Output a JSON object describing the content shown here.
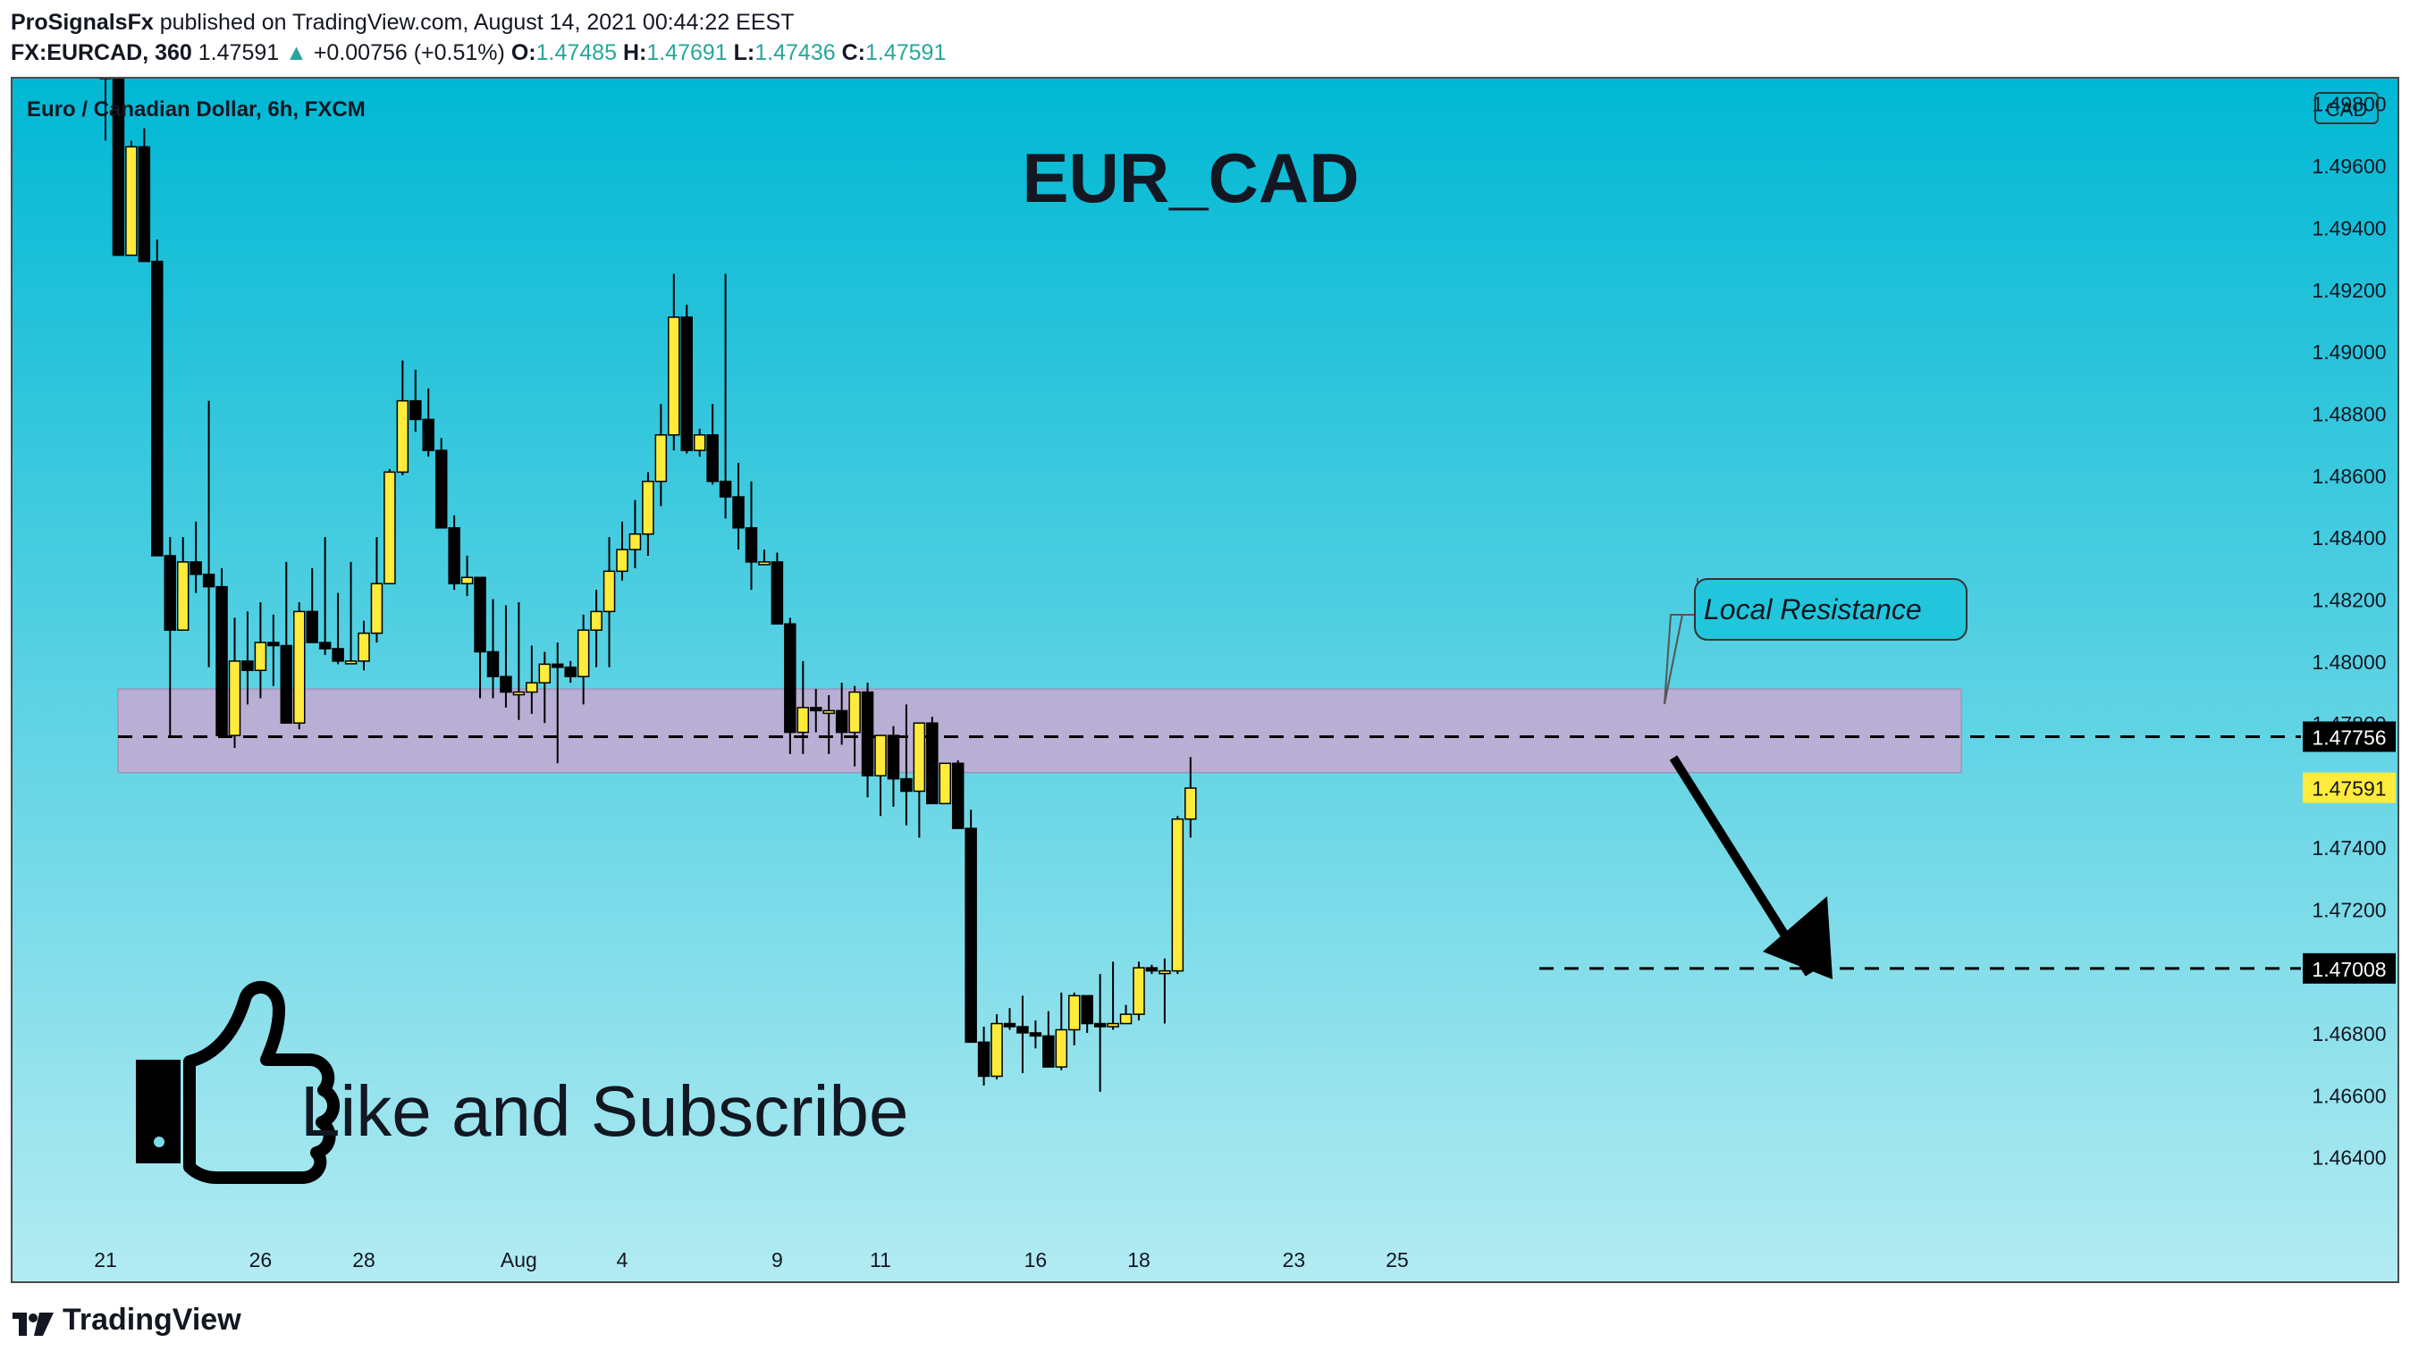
{
  "header": {
    "publisher": "ProSignalsFx",
    "published_text": "published on TradingView.com, August 14, 2021 00:44:22 EEST",
    "symbol": "FX:EURCAD, 360",
    "last": "1.47591",
    "change_arrow": "▲",
    "change": "+0.00756 (+0.51%)",
    "o_label": "O:",
    "o_value": "1.47485",
    "h_label": "H:",
    "h_value": "1.47691",
    "l_label": "L:",
    "l_value": "1.47436",
    "c_label": "C:",
    "c_value": "1.47591"
  },
  "footer": {
    "brand": "TradingView",
    "logo_icon": "tradingview-logo-icon"
  },
  "colors": {
    "bg_top": "#00b8d4",
    "bg_bottom": "#b3ebf2",
    "bull_body": "#ffeb3b",
    "bear_body": "#000000",
    "zone_fill": "#c9a8d1",
    "current_price_bg": "#ffeb3b",
    "level_label_bg": "#000000"
  },
  "chart_data": {
    "type": "candlestick",
    "instrument_label": "Euro / Canadian Dollar, 6h, FXCM",
    "title": "EUR_CAD",
    "currency_badge": "CAD",
    "ylim": [
      1.462,
      1.4988
    ],
    "y_ticks": [
      "1.49800",
      "1.49600",
      "1.49400",
      "1.49200",
      "1.49000",
      "1.48800",
      "1.48600",
      "1.48400",
      "1.48200",
      "1.48000",
      "1.47800",
      "1.47400",
      "1.47200",
      "1.46800",
      "1.46600",
      "1.46400"
    ],
    "x_ticks": [
      {
        "label": "21",
        "i": 0
      },
      {
        "label": "26",
        "i": 12
      },
      {
        "label": "28",
        "i": 20
      },
      {
        "label": "Aug",
        "i": 32
      },
      {
        "label": "4",
        "i": 40
      },
      {
        "label": "9",
        "i": 52
      },
      {
        "label": "11",
        "i": 60
      },
      {
        "label": "16",
        "i": 72
      },
      {
        "label": "18",
        "i": 80
      },
      {
        "label": "23",
        "i": 92
      },
      {
        "label": "25",
        "i": 100
      }
    ],
    "candles": [
      [
        1.499,
        1.4993,
        1.4968,
        1.4988
      ],
      [
        1.4988,
        1.499,
        1.4931,
        1.4931
      ],
      [
        1.4931,
        1.4968,
        1.4931,
        1.4966
      ],
      [
        1.4966,
        1.4972,
        1.4929,
        1.4929
      ],
      [
        1.4929,
        1.4936,
        1.4834,
        1.4834
      ],
      [
        1.4834,
        1.484,
        1.4776,
        1.481
      ],
      [
        1.481,
        1.484,
        1.481,
        1.4832
      ],
      [
        1.4832,
        1.4845,
        1.4822,
        1.4828
      ],
      [
        1.4828,
        1.4884,
        1.4798,
        1.4824
      ],
      [
        1.4824,
        1.483,
        1.4776,
        1.4776
      ],
      [
        1.4776,
        1.4814,
        1.4772,
        1.48
      ],
      [
        1.48,
        1.4816,
        1.4786,
        1.4797
      ],
      [
        1.4797,
        1.4819,
        1.4788,
        1.4806
      ],
      [
        1.4806,
        1.4815,
        1.4792,
        1.4805
      ],
      [
        1.4805,
        1.4832,
        1.478,
        1.478
      ],
      [
        1.478,
        1.4819,
        1.4778,
        1.4816
      ],
      [
        1.4816,
        1.483,
        1.4806,
        1.4806
      ],
      [
        1.4806,
        1.484,
        1.4802,
        1.4804
      ],
      [
        1.4804,
        1.4822,
        1.4799,
        1.48
      ],
      [
        1.48,
        1.4832,
        1.4799,
        1.48
      ],
      [
        1.48,
        1.4813,
        1.4797,
        1.4809
      ],
      [
        1.4809,
        1.484,
        1.4806,
        1.4825
      ],
      [
        1.4825,
        1.4862,
        1.4825,
        1.4861
      ],
      [
        1.4861,
        1.4897,
        1.486,
        1.4884
      ],
      [
        1.4884,
        1.4894,
        1.4874,
        1.4878
      ],
      [
        1.4878,
        1.4888,
        1.4866,
        1.4868
      ],
      [
        1.4868,
        1.4872,
        1.4843,
        1.4843
      ],
      [
        1.4843,
        1.4847,
        1.4823,
        1.4825
      ],
      [
        1.4825,
        1.4834,
        1.4821,
        1.4827
      ],
      [
        1.4827,
        1.4825,
        1.4788,
        1.4803
      ],
      [
        1.4803,
        1.482,
        1.4788,
        1.4795
      ],
      [
        1.4795,
        1.4818,
        1.4785,
        1.479
      ],
      [
        1.479,
        1.4819,
        1.4781,
        1.479
      ],
      [
        1.479,
        1.4805,
        1.4783,
        1.4793
      ],
      [
        1.4793,
        1.4803,
        1.478,
        1.4799
      ],
      [
        1.4799,
        1.4806,
        1.4767,
        1.4798
      ],
      [
        1.4798,
        1.48,
        1.4793,
        1.4795
      ],
      [
        1.4795,
        1.4815,
        1.4786,
        1.481
      ],
      [
        1.481,
        1.4823,
        1.4798,
        1.4816
      ],
      [
        1.4816,
        1.484,
        1.4798,
        1.4829
      ],
      [
        1.4829,
        1.4845,
        1.4826,
        1.4836
      ],
      [
        1.4836,
        1.4852,
        1.483,
        1.4841
      ],
      [
        1.4841,
        1.4861,
        1.4834,
        1.4858
      ],
      [
        1.4858,
        1.4883,
        1.485,
        1.4873
      ],
      [
        1.4873,
        1.4925,
        1.4868,
        1.4911
      ],
      [
        1.4911,
        1.4915,
        1.4867,
        1.4868
      ],
      [
        1.4868,
        1.4875,
        1.4866,
        1.4873
      ],
      [
        1.4873,
        1.4883,
        1.4857,
        1.4858
      ],
      [
        1.4858,
        1.4925,
        1.4846,
        1.4853
      ],
      [
        1.4853,
        1.4864,
        1.4836,
        1.4843
      ],
      [
        1.4843,
        1.4858,
        1.4823,
        1.4832
      ],
      [
        1.4832,
        1.4836,
        1.4831,
        1.4832
      ],
      [
        1.4832,
        1.4835,
        1.4812,
        1.4812
      ],
      [
        1.4812,
        1.4814,
        1.477,
        1.4777
      ],
      [
        1.4777,
        1.48,
        1.477,
        1.4785
      ],
      [
        1.4785,
        1.4791,
        1.4777,
        1.4784
      ],
      [
        1.4784,
        1.4789,
        1.477,
        1.4784
      ],
      [
        1.4784,
        1.4793,
        1.4773,
        1.4777
      ],
      [
        1.4777,
        1.4792,
        1.4766,
        1.479
      ],
      [
        1.479,
        1.4793,
        1.4756,
        1.4763
      ],
      [
        1.4763,
        1.4775,
        1.475,
        1.4776
      ],
      [
        1.4776,
        1.4779,
        1.4753,
        1.4762
      ],
      [
        1.4762,
        1.4786,
        1.4747,
        1.4758
      ],
      [
        1.4758,
        1.4778,
        1.4743,
        1.478
      ],
      [
        1.478,
        1.4782,
        1.4754,
        1.4754
      ],
      [
        1.4754,
        1.4764,
        1.4755,
        1.4767
      ],
      [
        1.4767,
        1.4768,
        1.4746,
        1.4746
      ],
      [
        1.4746,
        1.4752,
        1.468,
        1.4677
      ],
      [
        1.4677,
        1.4682,
        1.4663,
        1.4666
      ],
      [
        1.4666,
        1.4686,
        1.4665,
        1.4683
      ],
      [
        1.4683,
        1.4688,
        1.4681,
        1.4682
      ],
      [
        1.4682,
        1.4692,
        1.4667,
        1.468
      ],
      [
        1.468,
        1.4684,
        1.4675,
        1.4679
      ],
      [
        1.4679,
        1.4687,
        1.4669,
        1.4669
      ],
      [
        1.4669,
        1.4693,
        1.4668,
        1.4681
      ],
      [
        1.4681,
        1.4693,
        1.4676,
        1.4692
      ],
      [
        1.4692,
        1.4692,
        1.468,
        1.4683
      ],
      [
        1.4683,
        1.4699,
        1.4661,
        1.4682
      ],
      [
        1.4682,
        1.4703,
        1.4681,
        1.4683
      ],
      [
        1.4683,
        1.4689,
        1.4683,
        1.4686
      ],
      [
        1.4686,
        1.4703,
        1.4684,
        1.4701
      ],
      [
        1.4701,
        1.4702,
        1.4699,
        1.47
      ],
      [
        1.47,
        1.4704,
        1.4683,
        1.47
      ],
      [
        1.47,
        1.475,
        1.4699,
        1.4749
      ],
      [
        1.4749,
        1.4769,
        1.4743,
        1.4759
      ]
    ],
    "resistance_zone": {
      "from": 1.4764,
      "to": 1.4791,
      "label": "Local Resistance"
    },
    "levels": [
      {
        "price": 1.47756,
        "label": "1.47756",
        "style": "dashed"
      },
      {
        "price": 1.47008,
        "label": "1.47008",
        "style": "dashed"
      }
    ],
    "current_price": {
      "price": 1.47591,
      "label": "1.47591"
    },
    "overlay_text": {
      "like": "Like and Subscribe",
      "thumb_icon": "thumbs-up-icon",
      "arrow_icon": "down-arrow-icon"
    }
  }
}
